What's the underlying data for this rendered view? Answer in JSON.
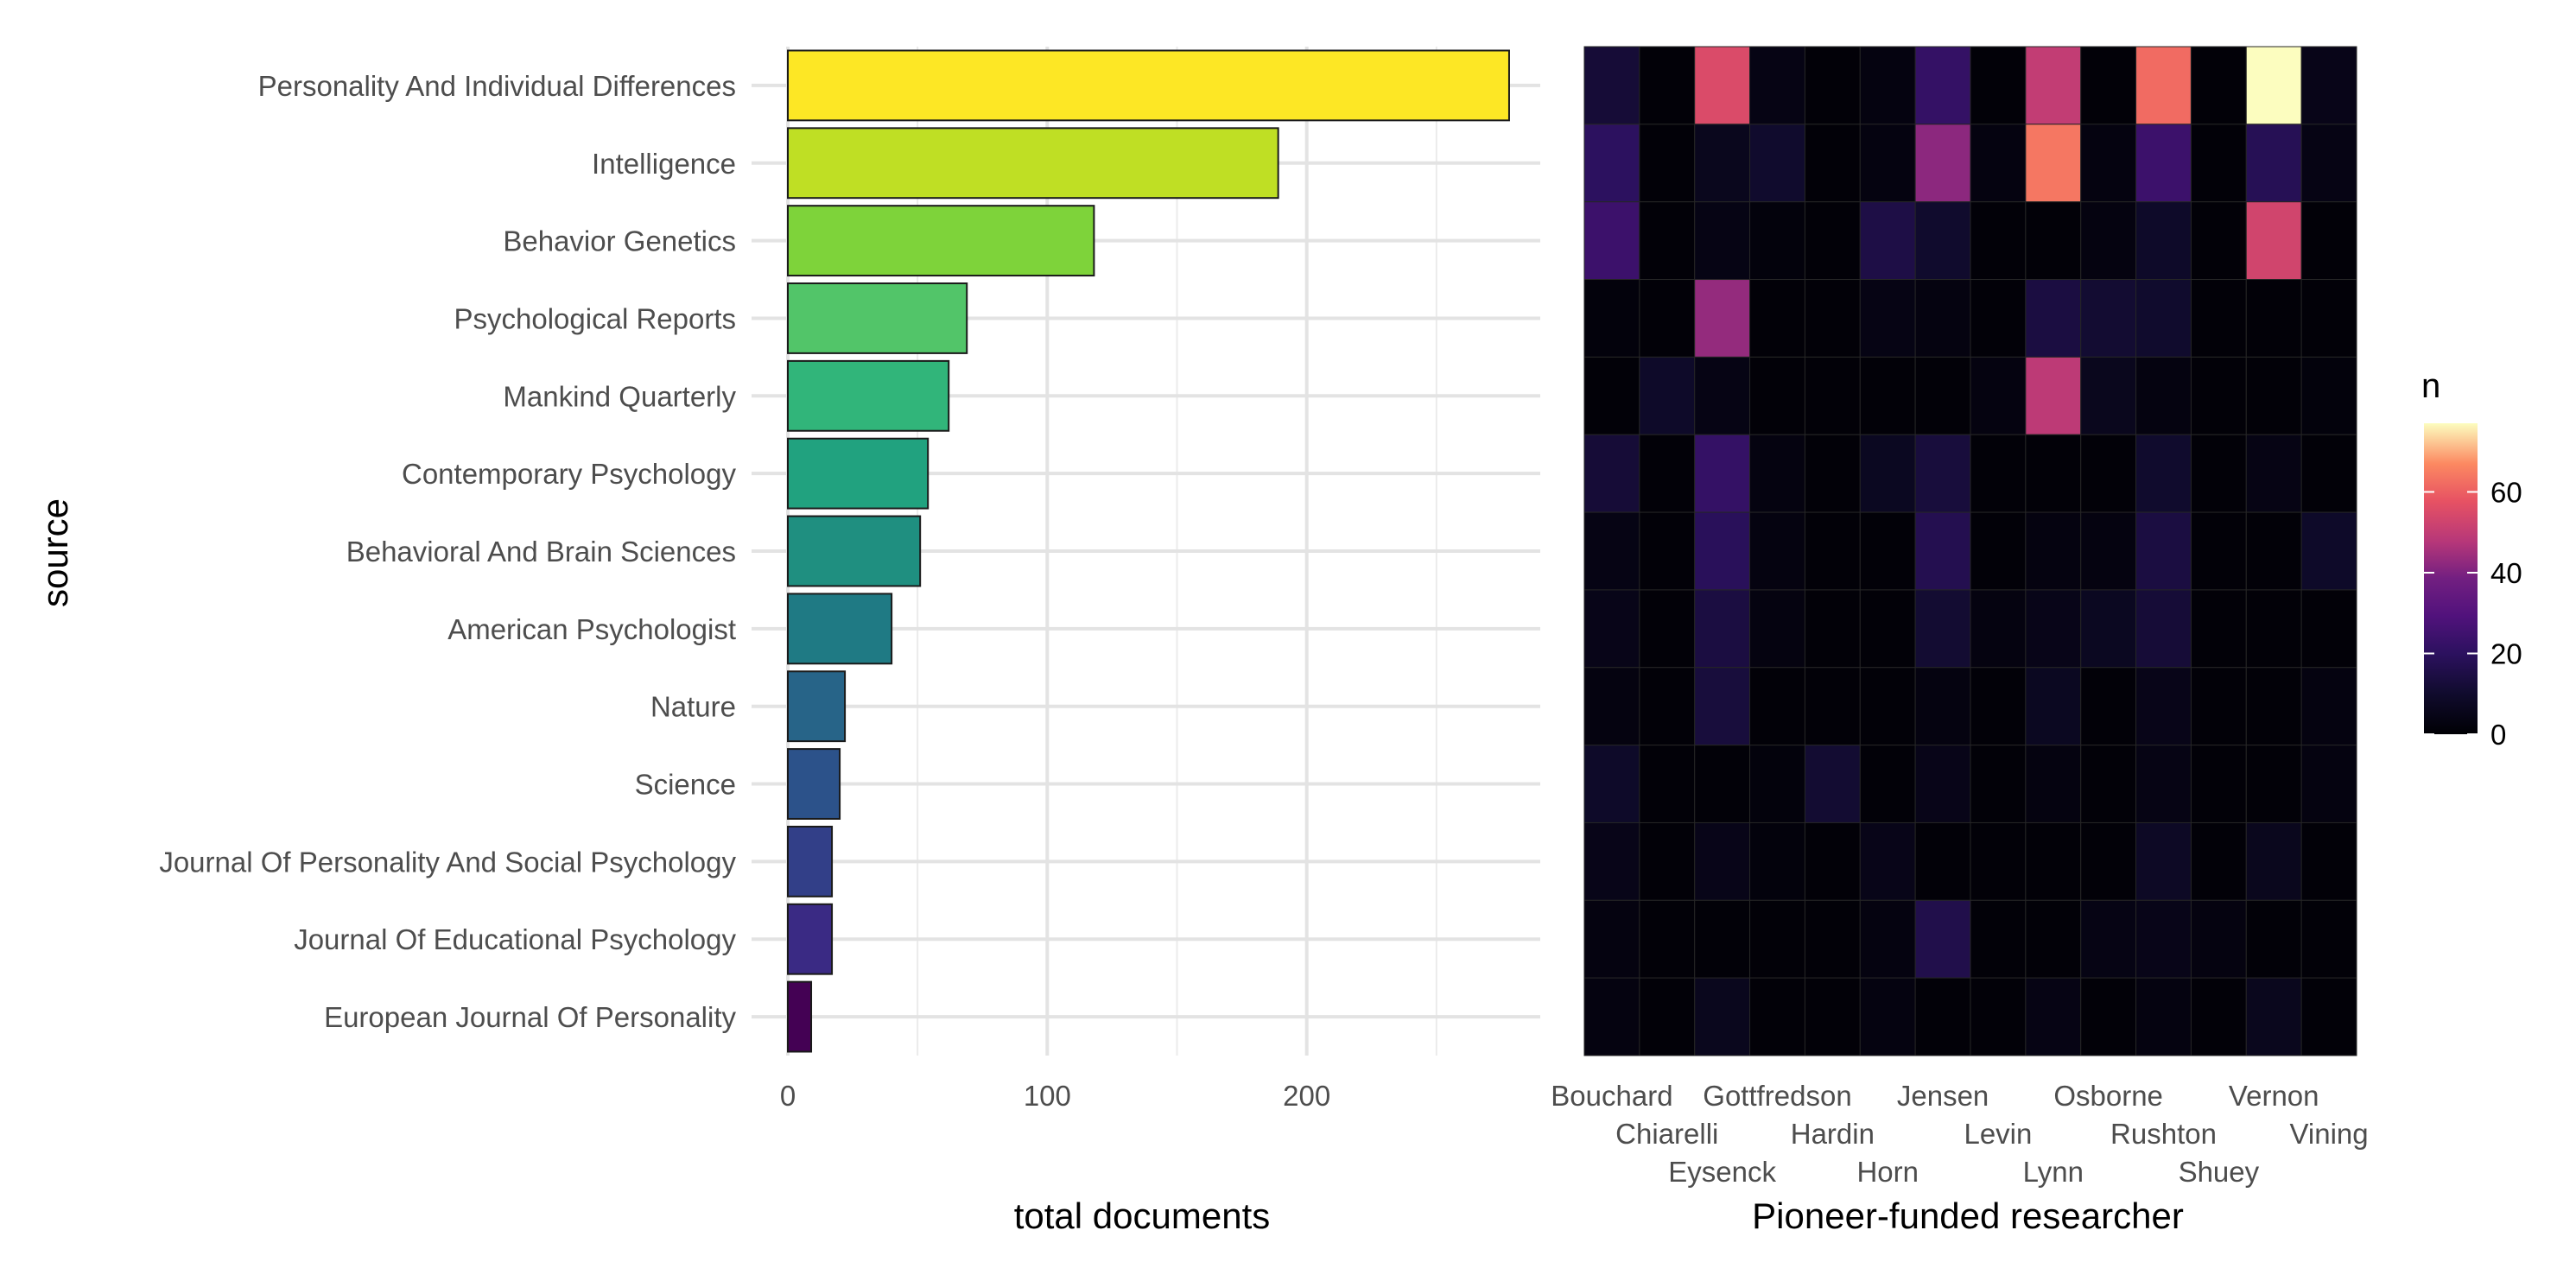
{
  "chart_data": [
    {
      "type": "bar",
      "orientation": "horizontal",
      "categories": [
        "Personality And Individual Differences",
        "Intelligence",
        "Behavior Genetics",
        "Psychological Reports",
        "Mankind Quarterly",
        "Contemporary Psychology",
        "Behavioral And Brain Sciences",
        "American Psychologist",
        "Nature",
        "Science",
        "Journal Of Personality And Social Psychology",
        "Journal Of Educational Psychology",
        "European Journal Of Personality"
      ],
      "values": [
        278,
        189,
        118,
        69,
        62,
        54,
        51,
        40,
        22,
        20,
        17,
        17,
        9
      ],
      "bar_colors": [
        "#FDE725",
        "#BFDF24",
        "#7ED33A",
        "#52C569",
        "#31B57A",
        "#21A27F",
        "#1F8F80",
        "#1F7A84",
        "#276488",
        "#2C528A",
        "#323F88",
        "#3A2A84",
        "#440154"
      ],
      "xlabel": "total documents",
      "ylabel": "source",
      "xlim": [
        0,
        290
      ],
      "xticks": [
        "0",
        "100",
        "200"
      ],
      "grid": true
    },
    {
      "type": "heatmap",
      "x_categories": [
        "Bouchard",
        "Chiarelli",
        "Eysenck",
        "Gottfredson",
        "Hardin",
        "Horn",
        "Jensen",
        "Levin",
        "Lynn",
        "Osborne",
        "Rushton",
        "Shuey",
        "Vernon",
        "Vining"
      ],
      "y_categories": [
        "Personality And Individual Differences",
        "Intelligence",
        "Behavior Genetics",
        "Psychological Reports",
        "Mankind Quarterly",
        "Contemporary Psychology",
        "Behavioral And Brain Sciences",
        "American Psychologist",
        "Nature",
        "Science",
        "Journal Of Personality And Social Psychology",
        "Journal Of Educational Psychology",
        "European Journal Of Personality"
      ],
      "values": [
        [
          12,
          1,
          55,
          4,
          1,
          3,
          22,
          1,
          50,
          1,
          62,
          1,
          77,
          5
        ],
        [
          20,
          1,
          6,
          10,
          1,
          3,
          42,
          3,
          64,
          3,
          24,
          1,
          18,
          4
        ],
        [
          24,
          1,
          4,
          2,
          1,
          15,
          10,
          1,
          1,
          3,
          9,
          1,
          53,
          1
        ],
        [
          2,
          1,
          43,
          1,
          1,
          4,
          3,
          1,
          14,
          11,
          10,
          1,
          1,
          1
        ],
        [
          1,
          9,
          4,
          1,
          1,
          1,
          1,
          3,
          49,
          6,
          3,
          1,
          1,
          2
        ],
        [
          12,
          1,
          22,
          3,
          1,
          7,
          13,
          1,
          1,
          1,
          10,
          1,
          4,
          1
        ],
        [
          4,
          1,
          19,
          3,
          1,
          1,
          17,
          1,
          3,
          3,
          14,
          1,
          1,
          9
        ],
        [
          5,
          1,
          14,
          3,
          1,
          1,
          11,
          3,
          5,
          7,
          12,
          1,
          1,
          1
        ],
        [
          3,
          1,
          13,
          1,
          1,
          1,
          3,
          1,
          7,
          1,
          5,
          1,
          1,
          3
        ],
        [
          9,
          1,
          1,
          2,
          11,
          1,
          5,
          1,
          3,
          1,
          4,
          1,
          1,
          3
        ],
        [
          5,
          1,
          5,
          2,
          1,
          5,
          1,
          1,
          1,
          1,
          8,
          1,
          6,
          1
        ],
        [
          3,
          1,
          1,
          1,
          1,
          3,
          16,
          1,
          1,
          4,
          5,
          3,
          1,
          1
        ],
        [
          3,
          1,
          6,
          1,
          1,
          3,
          1,
          1,
          4,
          1,
          3,
          1,
          6,
          1
        ]
      ],
      "xlabel": "Pioneer-funded researcher",
      "ylabel": "",
      "colorscale": "magma",
      "legend": {
        "title": "n",
        "ticks": [
          "0",
          "20",
          "40",
          "60"
        ],
        "min": 0,
        "max": 77,
        "placement": "right"
      }
    }
  ]
}
